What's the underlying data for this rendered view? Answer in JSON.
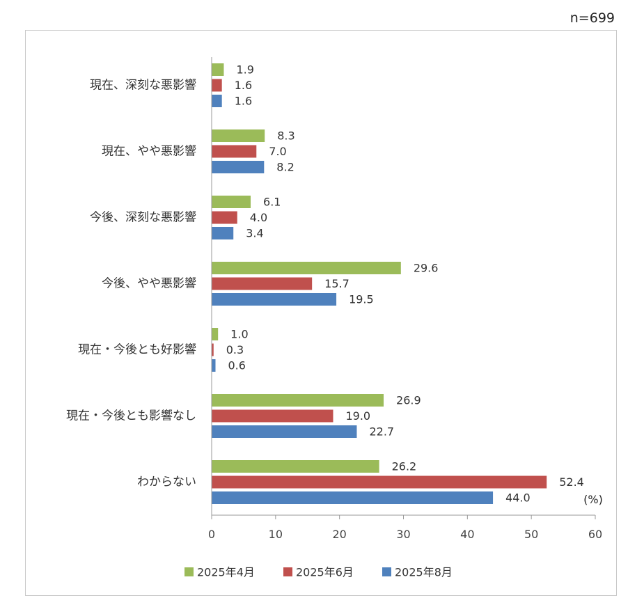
{
  "sample_size": "n=699",
  "chart_data": {
    "type": "bar",
    "orientation": "horizontal",
    "unit_label": "(%)",
    "categories": [
      "現在、深刻な悪影響",
      "現在、やや悪影響",
      "今後、深刻な悪影響",
      "今後、やや悪影響",
      "現在・今後とも好影響",
      "現在・今後とも影響なし",
      "わからない"
    ],
    "series": [
      {
        "name": "2025年4月",
        "color": "#9bbb59",
        "values": [
          1.9,
          8.3,
          6.1,
          29.6,
          1.0,
          26.9,
          26.2
        ]
      },
      {
        "name": "2025年6月",
        "color": "#c0504d",
        "values": [
          1.6,
          7.0,
          4.0,
          15.7,
          0.3,
          19.0,
          52.4
        ]
      },
      {
        "name": "2025年8月",
        "color": "#4f81bd",
        "values": [
          1.6,
          8.2,
          3.4,
          19.5,
          0.6,
          22.7,
          44.0
        ]
      }
    ],
    "value_labels": [
      [
        "1.9",
        "8.3",
        "6.1",
        "29.6",
        "1.0",
        "26.9",
        "26.2"
      ],
      [
        "1.6",
        "7.0",
        "4.0",
        "15.7",
        "0.3",
        "19.0",
        "52.4"
      ],
      [
        "1.6",
        "8.2",
        "3.4",
        "19.5",
        "0.6",
        "22.7",
        "44.0"
      ]
    ],
    "xlim": [
      0,
      60
    ],
    "xticks": [
      0,
      10,
      20,
      30,
      40,
      50,
      60
    ],
    "grid": false,
    "legend": "bottom"
  }
}
